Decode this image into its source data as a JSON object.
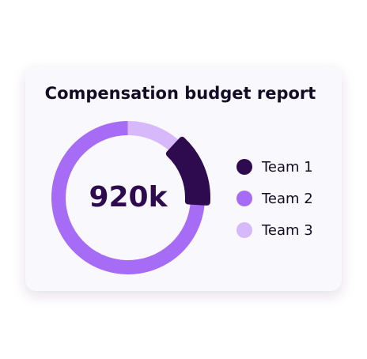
{
  "chart_data": {
    "type": "donut",
    "title": "Compensation budget report",
    "center_label": "920k",
    "categories": [
      "Team 1",
      "Team 2",
      "Team 3"
    ],
    "values": [
      14,
      74,
      12
    ],
    "colors": [
      "#2e0b4f",
      "#a66cf6",
      "#d6b8fb"
    ],
    "highlight": 0
  }
}
